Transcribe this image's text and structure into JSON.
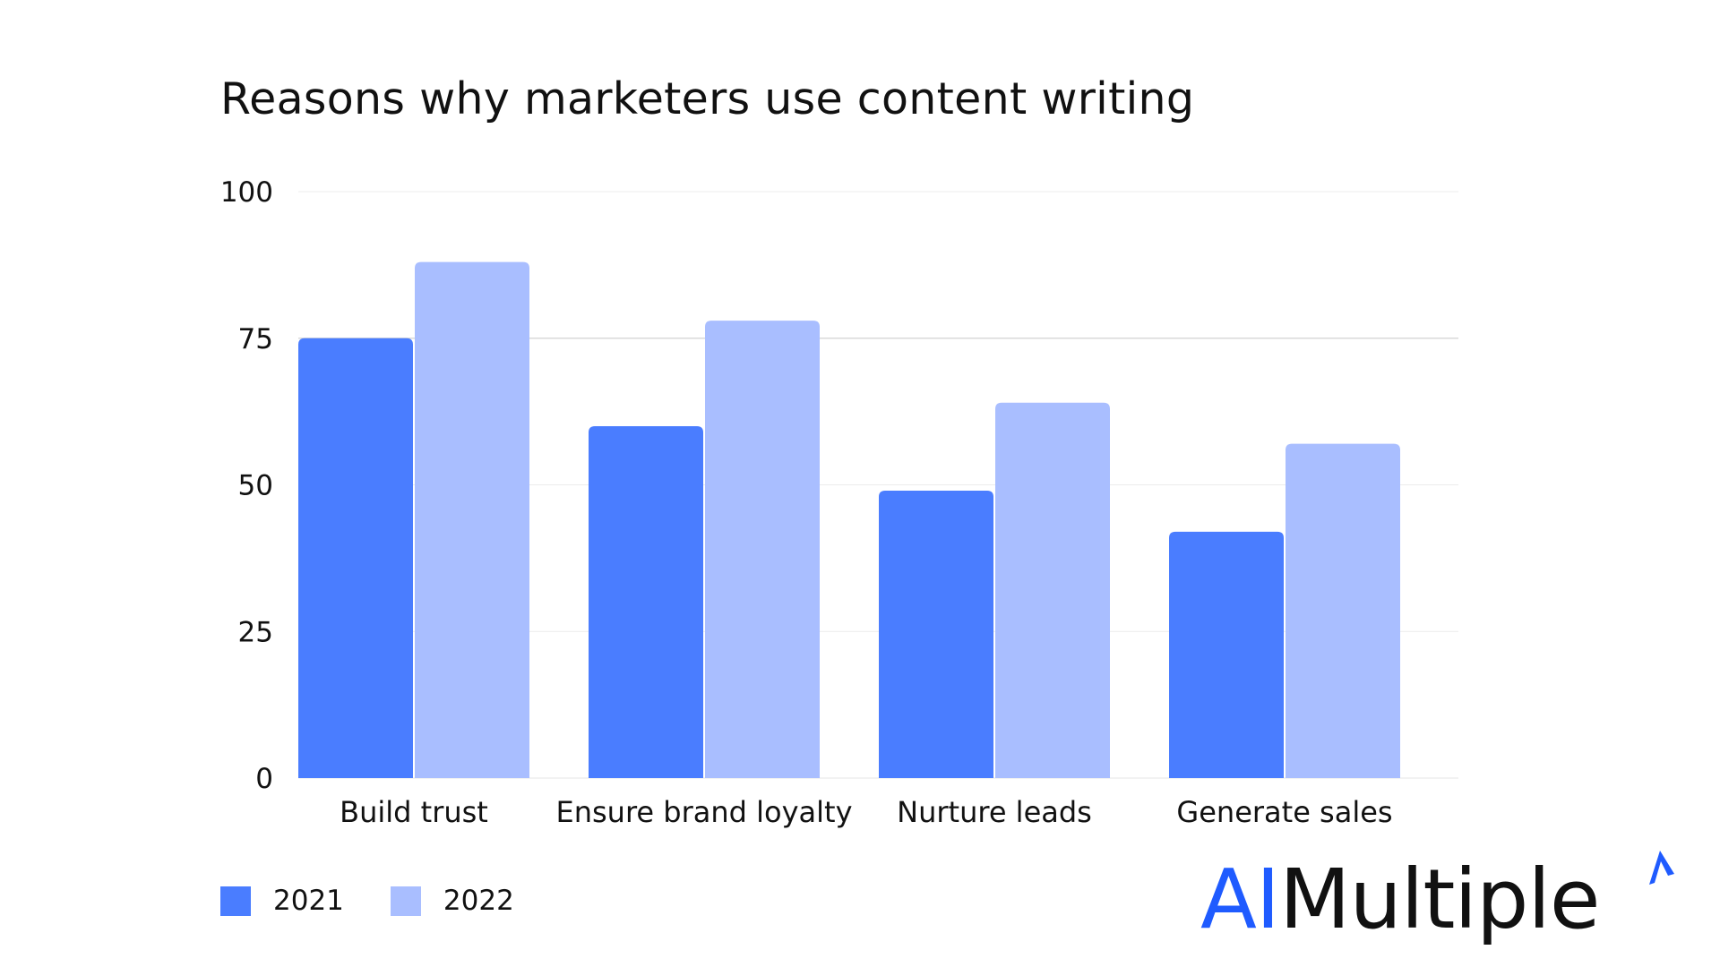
{
  "chart_data": {
    "type": "bar",
    "title": "Reasons why marketers use content writing",
    "xlabel": "",
    "ylabel": "",
    "ylim": [
      0,
      100
    ],
    "yticks": [
      0,
      25,
      50,
      75,
      100
    ],
    "grid": true,
    "legend_position": "bottom-left",
    "categories": [
      "Build trust",
      "Ensure brand loyalty",
      "Nurture leads",
      "Generate sales"
    ],
    "series": [
      {
        "name": "2021",
        "color": "#4a7dff",
        "values": [
          75,
          60,
          49,
          42
        ]
      },
      {
        "name": "2022",
        "color": "#a9beff",
        "values": [
          88,
          78,
          64,
          57
        ]
      }
    ]
  },
  "brand": {
    "ai": "AI",
    "rest": "Multiple",
    "ai_color": "#1f5bff",
    "rest_color": "#111111",
    "icon": "spark-icon"
  }
}
